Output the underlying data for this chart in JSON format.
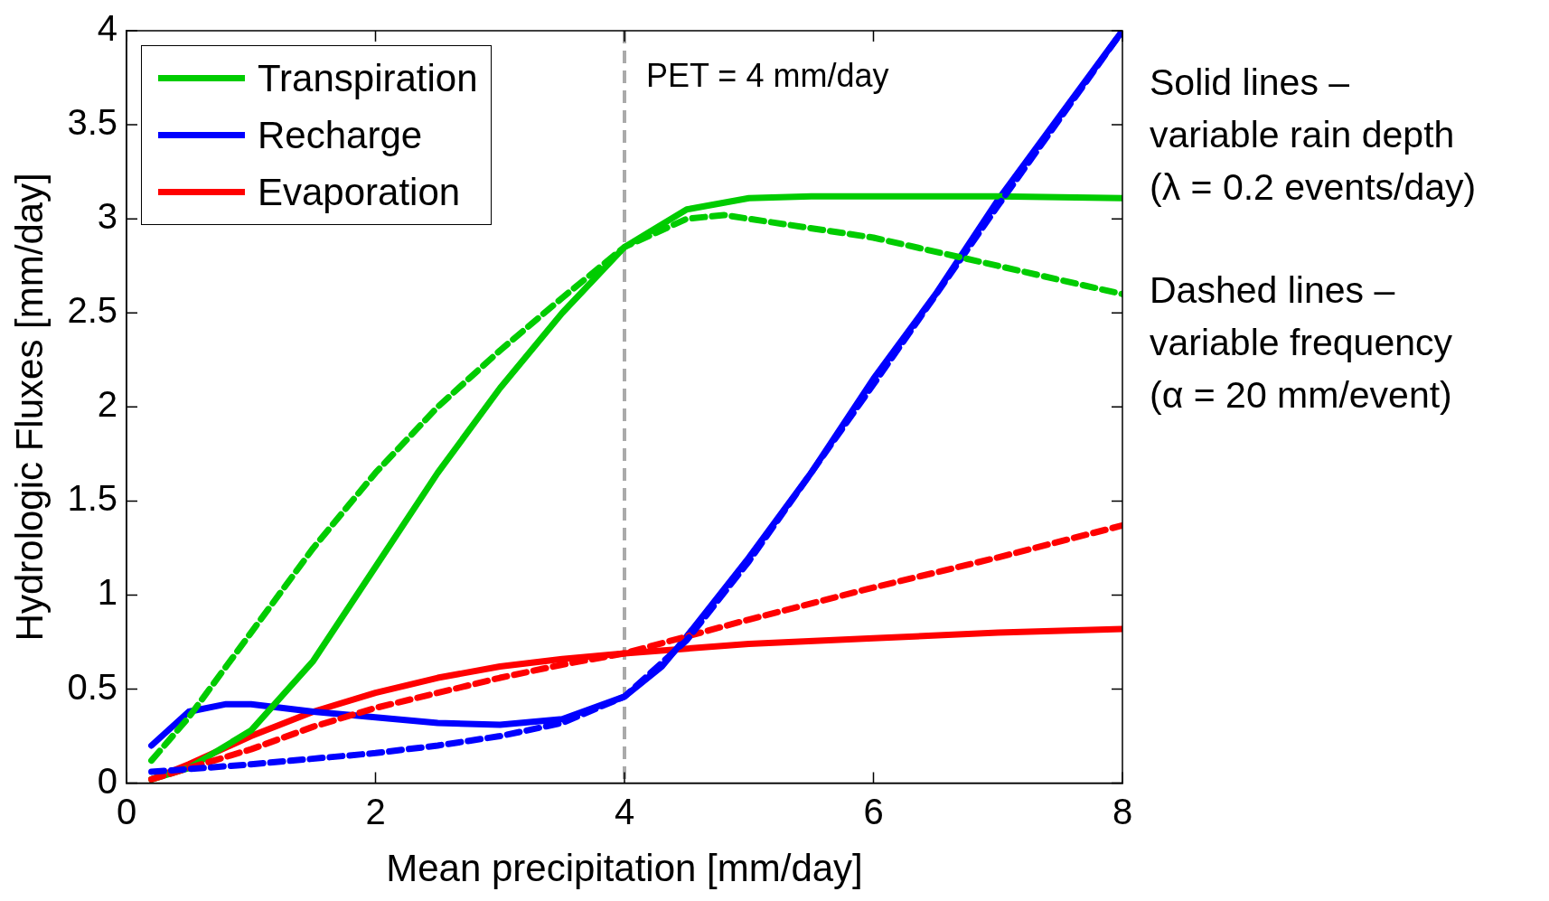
{
  "chart_data": {
    "type": "line",
    "xlabel": "Mean precipitation [mm/day]",
    "ylabel": "Hydrologic Fluxes [mm/day]",
    "xlim": [
      0,
      8
    ],
    "xticks": [
      0,
      2,
      4,
      6,
      8
    ],
    "ylim": [
      0,
      4
    ],
    "yticks": [
      0,
      0.5,
      1,
      1.5,
      2,
      2.5,
      3,
      3.5,
      4
    ],
    "grid": false,
    "legend": "top left",
    "marker": "none",
    "series": [
      {
        "name": "Transpiration",
        "color": "#00cc00",
        "line_style": "solid",
        "x": [
          0.2,
          0.5,
          1,
          1.5,
          2,
          2.5,
          3,
          3.5,
          4,
          4.5,
          5,
          5.5,
          6,
          7,
          8
        ],
        "values": [
          0.02,
          0.08,
          0.28,
          0.65,
          1.15,
          1.65,
          2.1,
          2.5,
          2.85,
          3.05,
          3.11,
          3.12,
          3.12,
          3.12,
          3.11
        ]
      },
      {
        "name": "Recharge",
        "color": "#0000ff",
        "line_style": "solid",
        "x": [
          0.2,
          0.5,
          0.8,
          1,
          1.5,
          2,
          2.5,
          3,
          3.5,
          4,
          4.3,
          4.5,
          5,
          5.5,
          6,
          6.5,
          7,
          7.5,
          8
        ],
        "values": [
          0.2,
          0.38,
          0.42,
          0.42,
          0.38,
          0.35,
          0.32,
          0.31,
          0.34,
          0.46,
          0.62,
          0.78,
          1.2,
          1.65,
          2.15,
          2.6,
          3.1,
          3.55,
          4.0
        ]
      },
      {
        "name": "Evaporation",
        "color": "#ff0000",
        "line_style": "solid",
        "x": [
          0.2,
          0.5,
          1,
          1.5,
          2,
          2.5,
          3,
          3.5,
          4,
          5,
          6,
          7,
          8
        ],
        "values": [
          0.02,
          0.1,
          0.25,
          0.38,
          0.48,
          0.56,
          0.62,
          0.66,
          0.69,
          0.74,
          0.77,
          0.8,
          0.82
        ]
      },
      {
        "color": "#00cc00",
        "line_style": "dashed",
        "x": [
          0.2,
          0.5,
          1,
          1.5,
          2,
          2.5,
          3,
          3.5,
          4,
          4.5,
          4.8,
          5,
          6,
          7,
          8
        ],
        "values": [
          0.12,
          0.35,
          0.8,
          1.25,
          1.65,
          2.0,
          2.3,
          2.58,
          2.85,
          3.0,
          3.02,
          3.0,
          2.9,
          2.75,
          2.6
        ]
      },
      {
        "color": "#0000ff",
        "line_style": "dashed",
        "x": [
          0.2,
          1,
          2,
          2.5,
          3,
          3.5,
          4,
          4.5,
          5,
          6,
          7,
          8
        ],
        "values": [
          0.06,
          0.1,
          0.16,
          0.2,
          0.25,
          0.32,
          0.46,
          0.76,
          1.18,
          2.12,
          3.07,
          4.0
        ]
      },
      {
        "color": "#ff0000",
        "line_style": "dashed",
        "x": [
          0.2,
          0.5,
          1,
          1.5,
          2,
          2.5,
          3,
          3.5,
          4,
          4.5,
          5,
          6,
          7,
          8
        ],
        "values": [
          0.02,
          0.08,
          0.18,
          0.3,
          0.4,
          0.48,
          0.56,
          0.63,
          0.69,
          0.78,
          0.87,
          1.04,
          1.2,
          1.37
        ]
      }
    ],
    "ref_lines": [
      {
        "axis": "x",
        "value": 4,
        "label": "PET = 4 mm/day",
        "color": "#aaaaaa",
        "line_style": "dashed"
      }
    ],
    "annotations": [
      "Solid lines –",
      "variable rain depth",
      "(λ = 0.2 events/day)",
      "Dashed lines –",
      "variable frequency",
      "(α = 20 mm/event)"
    ]
  }
}
